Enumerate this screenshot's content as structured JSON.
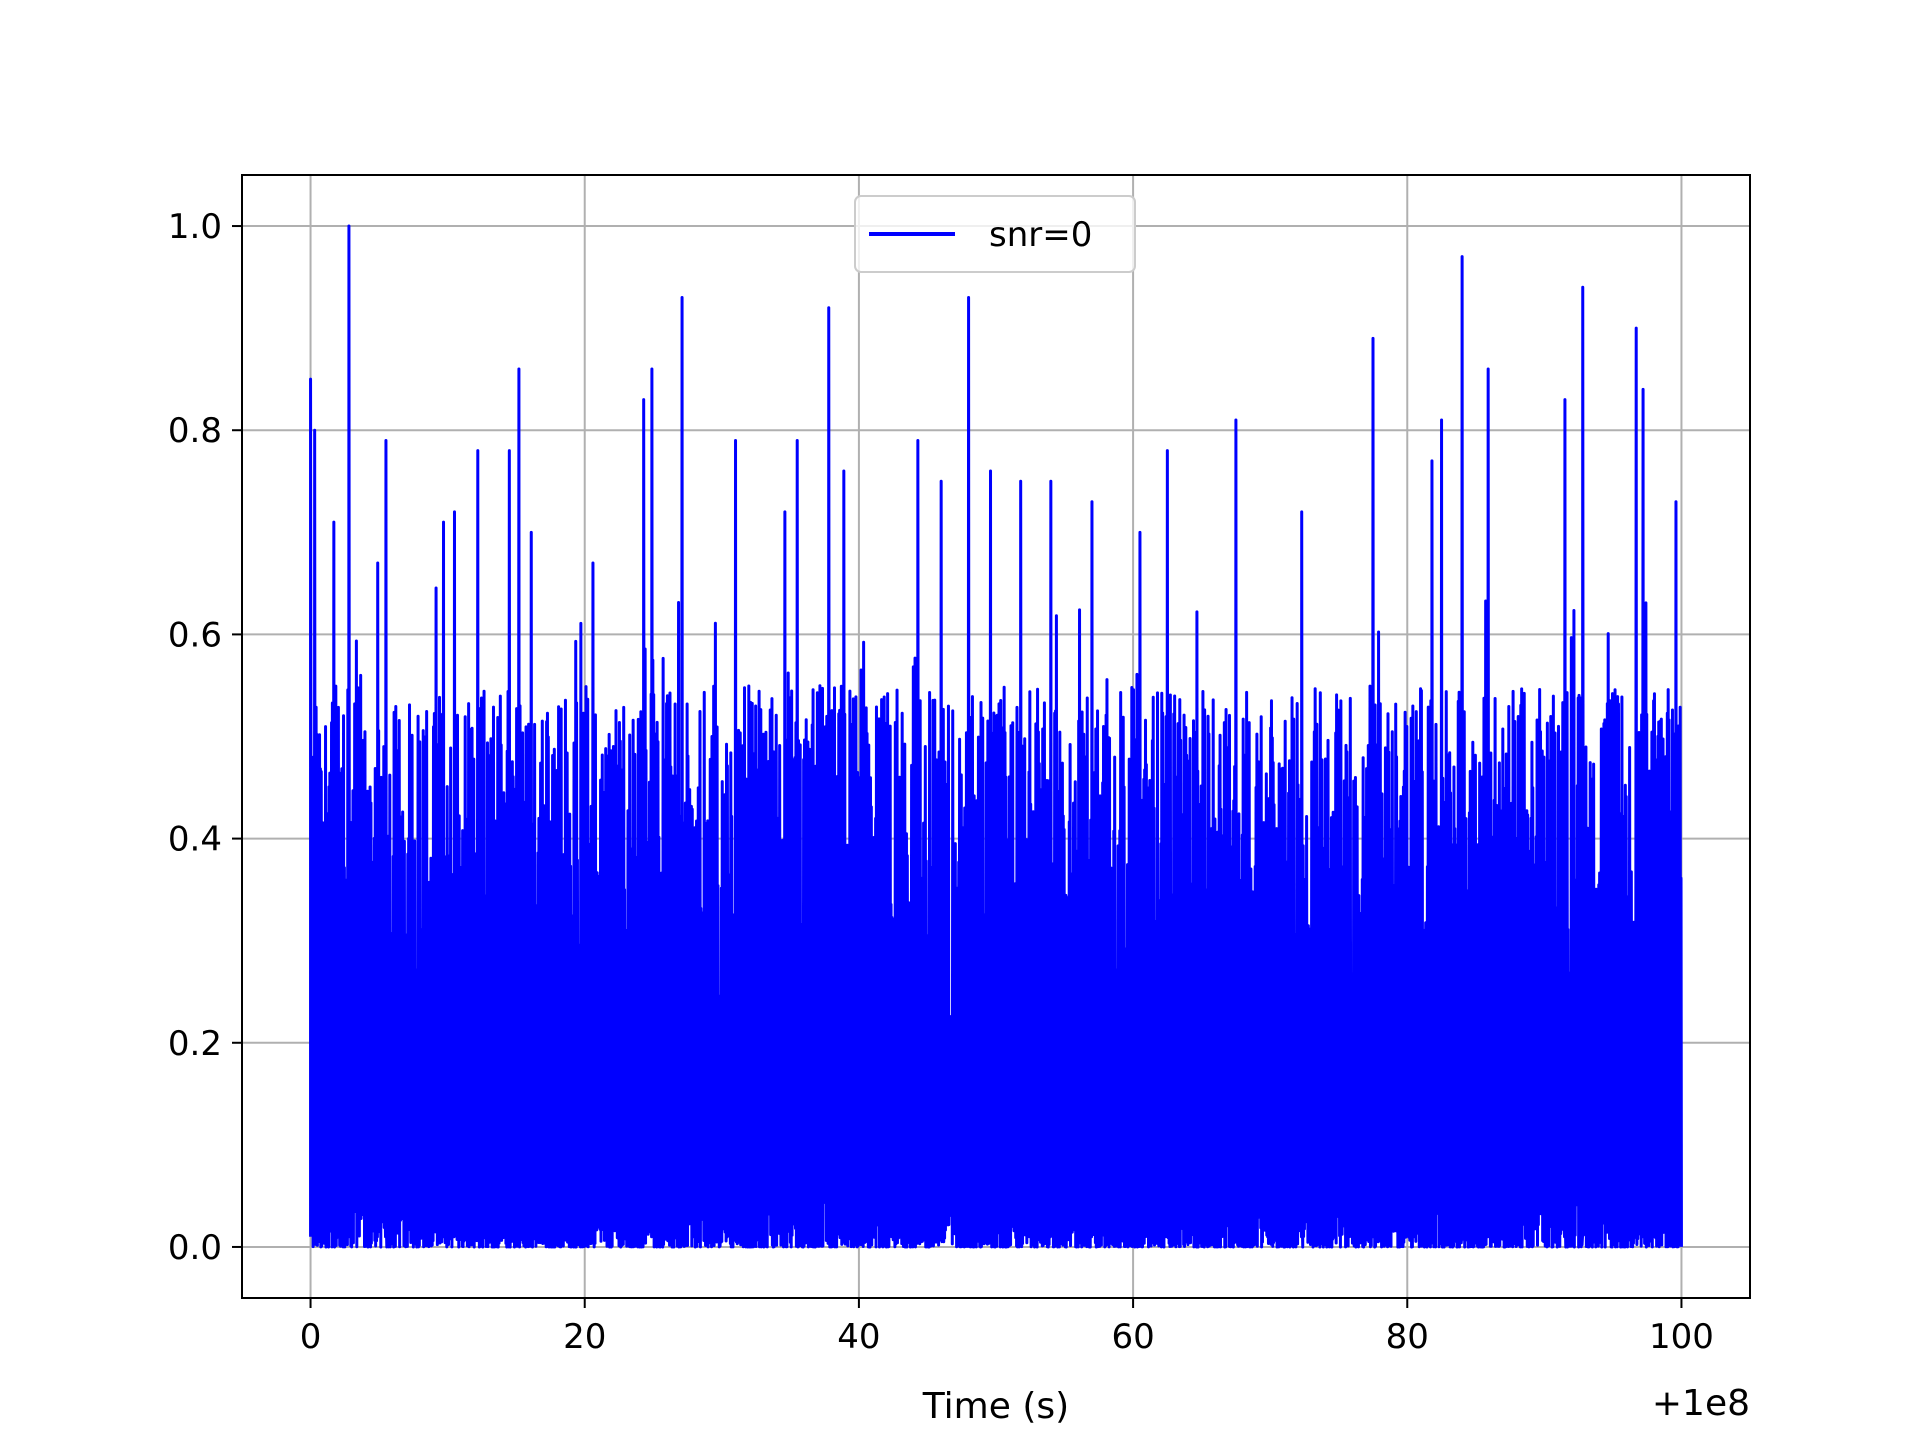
{
  "chart_data": {
    "type": "line",
    "title": "",
    "xlabel": "Time (s)",
    "ylabel": "",
    "x_offset_label": "+1e8",
    "xlim": [
      -5,
      105
    ],
    "ylim": [
      -0.05,
      1.05
    ],
    "x_ticks": [
      {
        "value": 0,
        "label": "0"
      },
      {
        "value": 20,
        "label": "20"
      },
      {
        "value": 40,
        "label": "40"
      },
      {
        "value": 60,
        "label": "60"
      },
      {
        "value": 80,
        "label": "80"
      },
      {
        "value": 100,
        "label": "100"
      }
    ],
    "y_ticks": [
      {
        "value": 0.0,
        "label": "0.0"
      },
      {
        "value": 0.2,
        "label": "0.2"
      },
      {
        "value": 0.4,
        "label": "0.4"
      },
      {
        "value": 0.6,
        "label": "0.6"
      },
      {
        "value": 0.8,
        "label": "0.8"
      },
      {
        "value": 1.0,
        "label": "1.0"
      }
    ],
    "grid": true,
    "legend_position": "upper-center",
    "series": [
      {
        "name": "snr=0",
        "color": "#0000ff",
        "x_range": [
          0,
          100
        ],
        "y_min": 0.0,
        "typical_envelope": 0.55,
        "peaks": [
          {
            "x": 0.0,
            "y": 0.85
          },
          {
            "x": 0.3,
            "y": 0.8
          },
          {
            "x": 1.7,
            "y": 0.71
          },
          {
            "x": 2.8,
            "y": 1.0
          },
          {
            "x": 4.9,
            "y": 0.67
          },
          {
            "x": 5.5,
            "y": 0.79
          },
          {
            "x": 9.7,
            "y": 0.71
          },
          {
            "x": 10.5,
            "y": 0.72
          },
          {
            "x": 12.2,
            "y": 0.78
          },
          {
            "x": 14.5,
            "y": 0.78
          },
          {
            "x": 15.2,
            "y": 0.86
          },
          {
            "x": 16.1,
            "y": 0.7
          },
          {
            "x": 20.6,
            "y": 0.67
          },
          {
            "x": 24.3,
            "y": 0.83
          },
          {
            "x": 24.9,
            "y": 0.86
          },
          {
            "x": 27.1,
            "y": 0.93
          },
          {
            "x": 31.0,
            "y": 0.79
          },
          {
            "x": 34.6,
            "y": 0.72
          },
          {
            "x": 35.5,
            "y": 0.79
          },
          {
            "x": 37.8,
            "y": 0.92
          },
          {
            "x": 38.9,
            "y": 0.76
          },
          {
            "x": 44.3,
            "y": 0.79
          },
          {
            "x": 46.0,
            "y": 0.75
          },
          {
            "x": 48.0,
            "y": 0.93
          },
          {
            "x": 49.6,
            "y": 0.76
          },
          {
            "x": 51.8,
            "y": 0.75
          },
          {
            "x": 54.0,
            "y": 0.75
          },
          {
            "x": 57.0,
            "y": 0.73
          },
          {
            "x": 60.5,
            "y": 0.7
          },
          {
            "x": 62.5,
            "y": 0.78
          },
          {
            "x": 67.5,
            "y": 0.81
          },
          {
            "x": 72.3,
            "y": 0.72
          },
          {
            "x": 77.5,
            "y": 0.89
          },
          {
            "x": 81.8,
            "y": 0.77
          },
          {
            "x": 82.5,
            "y": 0.81
          },
          {
            "x": 84.0,
            "y": 0.97
          },
          {
            "x": 85.9,
            "y": 0.86
          },
          {
            "x": 91.5,
            "y": 0.83
          },
          {
            "x": 92.8,
            "y": 0.94
          },
          {
            "x": 96.7,
            "y": 0.9
          },
          {
            "x": 97.2,
            "y": 0.84
          },
          {
            "x": 99.6,
            "y": 0.73
          }
        ]
      }
    ]
  }
}
